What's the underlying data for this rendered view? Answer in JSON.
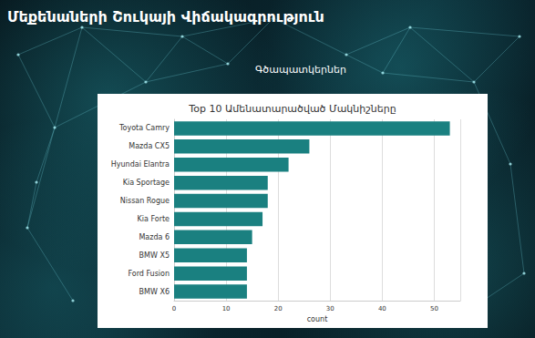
{
  "slide": {
    "title": "Մեքենաների Շուկայի Վիճակագրություն",
    "subtitle": "Գծապատկերներ"
  },
  "chart_data": {
    "type": "bar",
    "orientation": "horizontal",
    "title": "Top 10 Ամենատարածված Մակնիշները",
    "categories": [
      "Toyota Camry",
      "Mazda CX5",
      "Hyundai Elantra",
      "Kia Sportage",
      "Nissan Rogue",
      "Kia Forte",
      "Mazda 6",
      "BMW X5",
      "Ford Fusion",
      "BMW X6"
    ],
    "values": [
      53,
      26,
      22,
      18,
      18,
      17,
      15,
      14,
      14,
      14
    ],
    "color": "#1a8080",
    "x_label": "count",
    "xlim": [
      0,
      55
    ],
    "xticks": [
      0,
      10,
      20,
      30,
      40,
      50
    ],
    "grid": true
  }
}
